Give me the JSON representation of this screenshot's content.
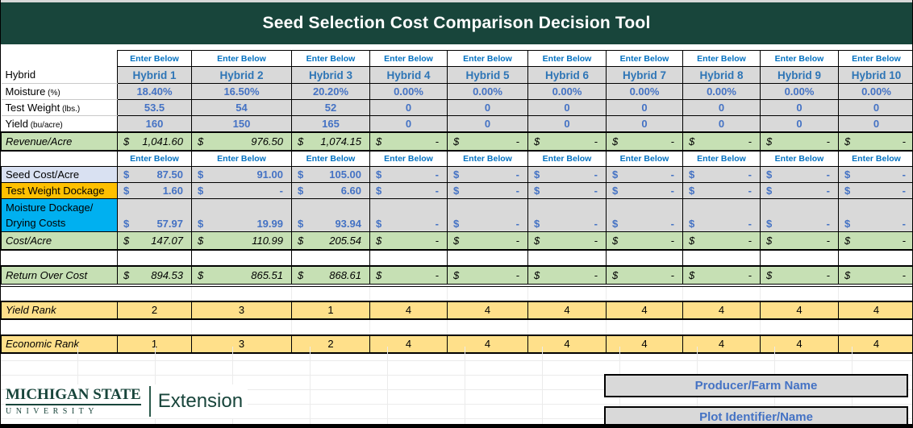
{
  "header": {
    "title": "Seed Selection Cost Comparison Decision Tool"
  },
  "colors": {
    "msu_green": "#18453B",
    "gray_cell": "#D9D9D9",
    "green_row": "#C6E0B4",
    "yellow_rank_row": "#FFE08A",
    "light_blue_label": "#D9E1F2",
    "orange_label": "#FFC000",
    "cyan_label": "#00B0F0",
    "enter_below_text": "#0070C0",
    "hybrid_header_text": "#2E75B6",
    "input_value_text": "#4472C4"
  },
  "grid": {
    "enter_below_label": "Enter Below",
    "currency_symbol": "$",
    "rows": [
      {
        "id": "enter-top",
        "kind": "enter",
        "height": 19,
        "editable": false
      },
      {
        "id": "hybrid",
        "kind": "hdr",
        "label": "Hybrid",
        "height": 21,
        "editable": true,
        "cells": [
          "Hybrid 1",
          "Hybrid 2",
          "Hybrid 3",
          "Hybrid 4",
          "Hybrid 5",
          "Hybrid 6",
          "Hybrid 7",
          "Hybrid 8",
          "Hybrid 9",
          "Hybrid 10"
        ]
      },
      {
        "id": "moisture",
        "kind": "input",
        "label": "Moisture",
        "label_small": "(%)",
        "height": 20,
        "editable": true,
        "cells": [
          "18.40%",
          "16.50%",
          "20.20%",
          "0.00%",
          "0.00%",
          "0.00%",
          "0.00%",
          "0.00%",
          "0.00%",
          "0.00%"
        ]
      },
      {
        "id": "test-weight",
        "kind": "input",
        "label": "Test Weight",
        "label_small": "(lbs.)",
        "height": 20,
        "editable": true,
        "cells": [
          "53.5",
          "54",
          "52",
          "0",
          "0",
          "0",
          "0",
          "0",
          "0",
          "0"
        ]
      },
      {
        "id": "yield",
        "kind": "input",
        "label": "Yield",
        "label_small": "(bu/acre)",
        "height": 19,
        "editable": true,
        "cells": [
          "160",
          "150",
          "165",
          "0",
          "0",
          "0",
          "0",
          "0",
          "0",
          "0"
        ]
      },
      {
        "id": "revenue",
        "kind": "curgreen revenue",
        "label": "Revenue/Acre",
        "label_class": "lbl-green",
        "currency": true,
        "height": 23,
        "editable": false,
        "cells": [
          "1,041.60",
          "976.50",
          "1,074.15",
          "-",
          "-",
          "-",
          "-",
          "-",
          "-",
          "-"
        ]
      },
      {
        "id": "enter-mid",
        "kind": "enter",
        "height": 20,
        "editable": false
      },
      {
        "id": "seed-cost",
        "kind": "curblue",
        "label": "Seed Cost/Acre",
        "label_class": "lbl-blue",
        "currency": true,
        "height": 20,
        "editable": true,
        "cells": [
          "87.50",
          "91.00",
          "105.00",
          "-",
          "-",
          "-",
          "-",
          "-",
          "-",
          "-"
        ]
      },
      {
        "id": "tw-dockage",
        "kind": "curblue",
        "label": "Test Weight Dockage",
        "label_class": "lbl-orange",
        "currency": true,
        "height": 20,
        "editable": false,
        "cells": [
          "1.60",
          "-",
          "6.60",
          "-",
          "-",
          "-",
          "-",
          "-",
          "-",
          "-"
        ]
      },
      {
        "id": "moisture-dockage",
        "kind": "curblue tall",
        "label_lines": [
          "Moisture Dockage/",
          "Drying Costs"
        ],
        "label_class": "lbl-cyan",
        "currency": true,
        "height": 41,
        "editable": false,
        "cells": [
          "57.97",
          "19.99",
          "93.94",
          "-",
          "-",
          "-",
          "-",
          "-",
          "-",
          "-"
        ]
      },
      {
        "id": "cost-acre",
        "kind": "curgreen cost",
        "label": "Cost/Acre",
        "label_class": "lbl-green",
        "currency": true,
        "height": 22,
        "editable": false,
        "cells": [
          "147.07",
          "110.99",
          "205.54",
          "-",
          "-",
          "-",
          "-",
          "-",
          "-",
          "-"
        ]
      },
      {
        "id": "gap-1",
        "kind": "gapb",
        "height": 18,
        "editable": false
      },
      {
        "id": "return-over-cost",
        "kind": "curgreen return",
        "label": "Return Over Cost",
        "label_class": "lbl-green",
        "currency": true,
        "height": 24,
        "editable": false,
        "cells": [
          "894.53",
          "865.51",
          "868.61",
          "-",
          "-",
          "-",
          "-",
          "-",
          "-",
          "-"
        ]
      },
      {
        "id": "gap-2",
        "kind": "gap",
        "height": 19,
        "editable": false
      },
      {
        "id": "yield-rank",
        "kind": "rank",
        "label": "Yield Rank",
        "label_class": "lbl-yellow",
        "height": 22,
        "editable": false,
        "cells": [
          "2",
          "3",
          "1",
          "4",
          "4",
          "4",
          "4",
          "4",
          "4",
          "4"
        ]
      },
      {
        "id": "gap-3",
        "kind": "gap",
        "height": 18,
        "editable": false
      },
      {
        "id": "economic-rank",
        "kind": "rank",
        "label": "Economic Rank",
        "label_class": "lbl-yellow",
        "height": 22,
        "editable": false,
        "cells": [
          "1",
          "3",
          "2",
          "4",
          "4",
          "4",
          "4",
          "4",
          "4",
          "4"
        ]
      }
    ]
  },
  "footer": {
    "logo": {
      "line1": "MICHIGAN STATE",
      "line2": "UNIVERSITY",
      "extension": "Extension"
    },
    "producer_label": "Producer/Farm Name",
    "plot_label": "Plot Identifier/Name"
  }
}
